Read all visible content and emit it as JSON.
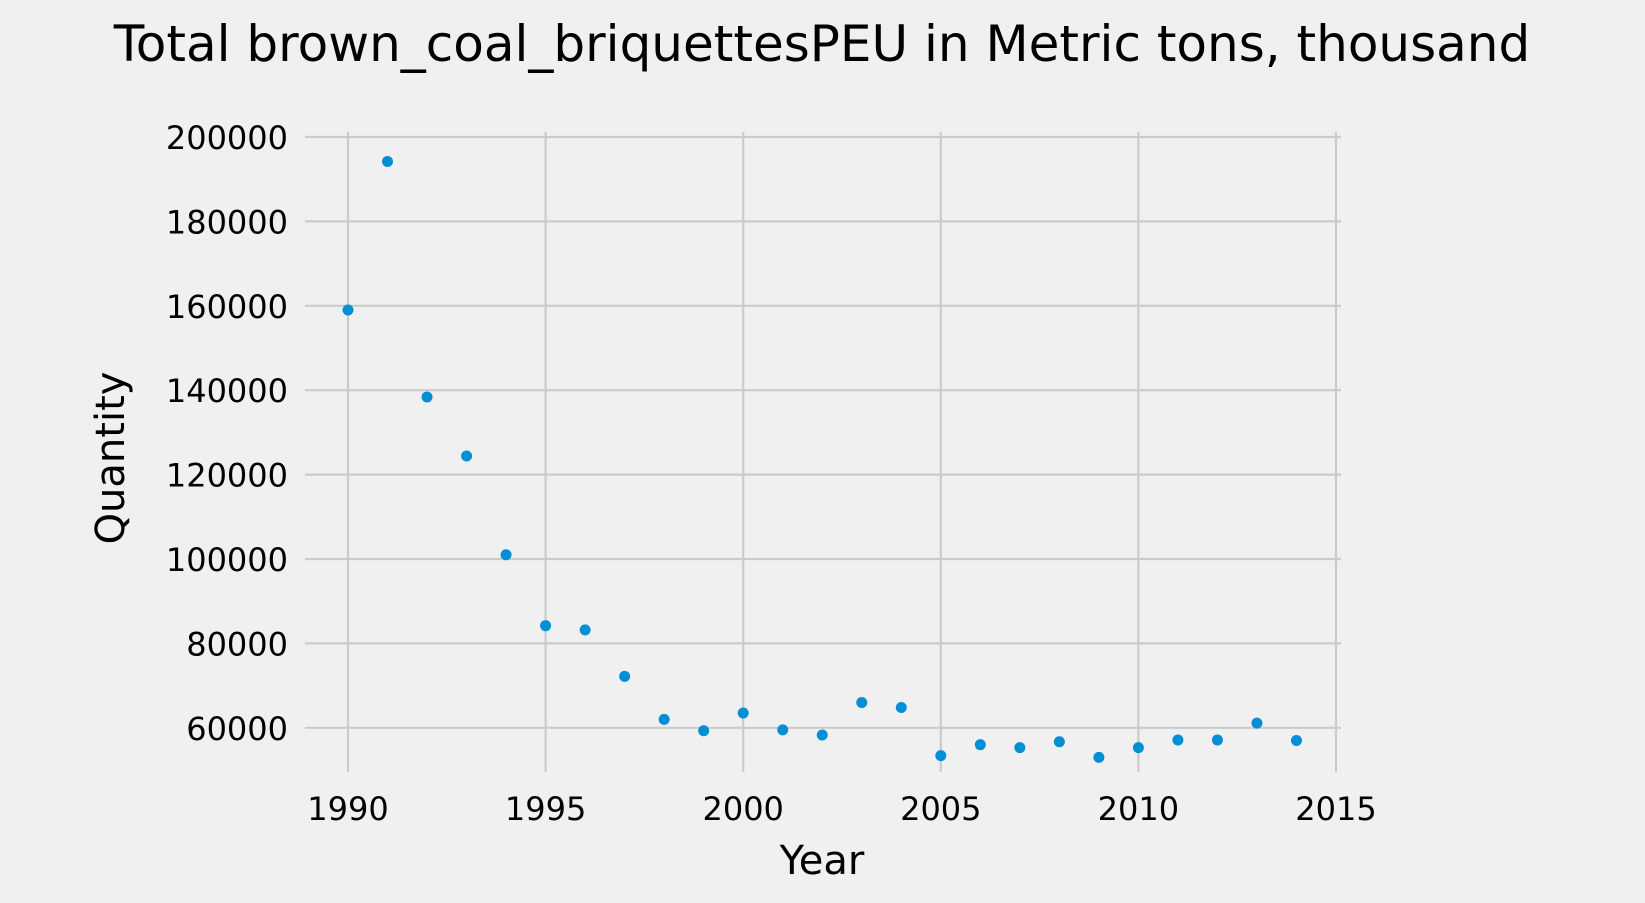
{
  "chart_data": {
    "type": "scatter",
    "title": "Total brown_coal_briquettesPEU in Metric tons,  thousand",
    "xlabel": "Year",
    "ylabel": "Quantity",
    "xlim": [
      1990,
      2015
    ],
    "ylim": [
      50000,
      200000
    ],
    "xticks": [
      1990,
      1995,
      2000,
      2005,
      2010,
      2015
    ],
    "yticks": [
      60000,
      80000,
      100000,
      120000,
      140000,
      160000,
      180000,
      200000
    ],
    "grid": true,
    "legend": "none",
    "colors": {
      "points": "#008fd5",
      "background": "#f0f0f0",
      "grid": "#cbcbcb"
    },
    "series": [
      {
        "x": [
          1990,
          1991,
          1992,
          1993,
          1994,
          1995,
          1996,
          1997,
          1998,
          1999,
          2000,
          2001,
          2002,
          2003,
          2004,
          2005,
          2006,
          2007,
          2008,
          2009,
          2010,
          2011,
          2012,
          2013,
          2014
        ],
        "y": [
          159000,
          194200,
          138400,
          124400,
          101000,
          84200,
          83200,
          72200,
          62000,
          59300,
          63500,
          59500,
          58300,
          66000,
          64800,
          53400,
          56000,
          55300,
          56700,
          53000,
          55300,
          57100,
          57100,
          61100,
          57000
        ]
      }
    ]
  }
}
